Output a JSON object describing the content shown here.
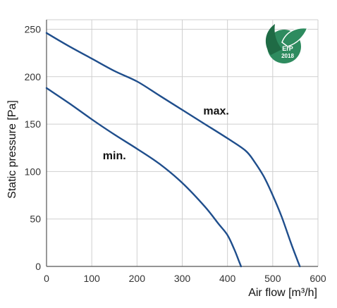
{
  "chart_data": {
    "type": "line",
    "xlabel": "Air flow [m³/h]",
    "ylabel": "Static pressure [Pa]",
    "xlim": [
      0,
      600
    ],
    "ylim": [
      0,
      260
    ],
    "x_ticks": [
      0,
      100,
      200,
      300,
      400,
      500,
      600
    ],
    "y_ticks": [
      0,
      50,
      100,
      150,
      200,
      250
    ],
    "grid": true,
    "line_color": "#1f4e8c",
    "series": [
      {
        "name": "max.",
        "x": [
          0,
          50,
          100,
          150,
          200,
          250,
          300,
          350,
          400,
          440,
          460,
          480,
          500,
          520,
          540,
          555,
          560
        ],
        "y": [
          246,
          232,
          219,
          206,
          195,
          180,
          165,
          150,
          135,
          122,
          110,
          95,
          75,
          52,
          25,
          6,
          0
        ]
      },
      {
        "name": "min.",
        "x": [
          0,
          50,
          100,
          150,
          200,
          250,
          300,
          350,
          380,
          400,
          415,
          425,
          430
        ],
        "y": [
          188,
          172,
          155,
          139,
          124,
          108,
          88,
          63,
          45,
          33,
          18,
          6,
          0
        ]
      }
    ],
    "annotations": [
      {
        "text": "max.",
        "x": 375,
        "y": 160
      },
      {
        "text": "min.",
        "x": 150,
        "y": 113
      }
    ],
    "badge": {
      "text": "ErP",
      "year": "2018",
      "color": "#2e8b5f",
      "leaf_color": "#1f6b45"
    }
  }
}
